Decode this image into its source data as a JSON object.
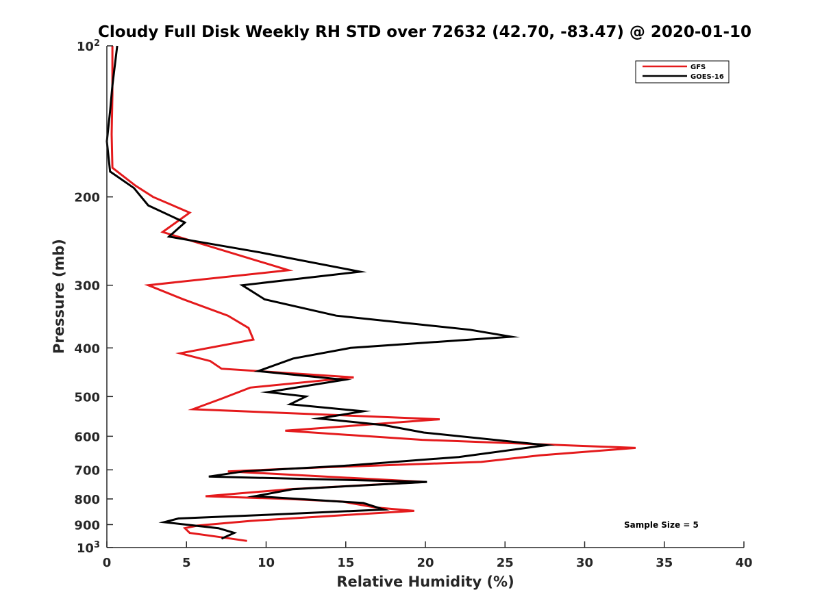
{
  "chart_data": {
    "type": "line",
    "title": "Cloudy Full Disk Weekly RH STD over 72632 (42.70, -83.47) @ 2020-01-10",
    "xlabel": "Relative Humidity (%)",
    "ylabel": "Pressure (mb)",
    "xlim": [
      0,
      40
    ],
    "ylim": [
      100,
      1000
    ],
    "y_scale": "log",
    "y_reversed": true,
    "x_ticks": [
      "0",
      "5",
      "10",
      "15",
      "20",
      "25",
      "30",
      "35",
      "40"
    ],
    "y_ticks": [
      {
        "value": 100,
        "base": "10",
        "exp": "2"
      },
      {
        "value": 200,
        "label": "200"
      },
      {
        "value": 300,
        "label": "300"
      },
      {
        "value": 400,
        "label": "400"
      },
      {
        "value": 500,
        "label": "500"
      },
      {
        "value": 600,
        "label": "600"
      },
      {
        "value": 700,
        "label": "700"
      },
      {
        "value": 800,
        "label": "800"
      },
      {
        "value": 900,
        "label": "900"
      },
      {
        "value": 1000,
        "base": "10",
        "exp": "3"
      }
    ],
    "grid": false,
    "legend_position": "top-right",
    "annotation": "Sample Size = 5",
    "series": [
      {
        "name": "GFS",
        "color": "#e41a1c",
        "points": [
          [
            0.35,
            100
          ],
          [
            0.35,
            125
          ],
          [
            0.3,
            150
          ],
          [
            0.35,
            175
          ],
          [
            1.8,
            190
          ],
          [
            2.9,
            200
          ],
          [
            5.2,
            215
          ],
          [
            3.5,
            235
          ],
          [
            11.4,
            280
          ],
          [
            2.6,
            300
          ],
          [
            4.8,
            320
          ],
          [
            7.6,
            345
          ],
          [
            8.9,
            365
          ],
          [
            9.2,
            385
          ],
          [
            4.6,
            410
          ],
          [
            6.5,
            425
          ],
          [
            7.2,
            440
          ],
          [
            15.5,
            458
          ],
          [
            9.0,
            480
          ],
          [
            7.2,
            505
          ],
          [
            5.4,
            530
          ],
          [
            20.9,
            555
          ],
          [
            11.2,
            585
          ],
          [
            19.8,
            610
          ],
          [
            33.2,
            633
          ],
          [
            27.2,
            655
          ],
          [
            23.5,
            675
          ],
          [
            13.6,
            692
          ],
          [
            7.6,
            705
          ],
          [
            20.0,
            740
          ],
          [
            11.5,
            765
          ],
          [
            6.2,
            790
          ],
          [
            11.4,
            800
          ],
          [
            14.8,
            810
          ],
          [
            16.9,
            832
          ],
          [
            19.3,
            845
          ],
          [
            14.8,
            862
          ],
          [
            9.0,
            885
          ],
          [
            5.7,
            904
          ],
          [
            4.9,
            915
          ],
          [
            5.2,
            935
          ],
          [
            7.3,
            955
          ],
          [
            8.8,
            970
          ]
        ]
      },
      {
        "name": "GOES-16",
        "color": "#000000",
        "points": [
          [
            0.65,
            100
          ],
          [
            0.35,
            120
          ],
          [
            0.2,
            135
          ],
          [
            0.0,
            155
          ],
          [
            0.2,
            178
          ],
          [
            1.7,
            192
          ],
          [
            2.6,
            208
          ],
          [
            4.9,
            225
          ],
          [
            3.9,
            240
          ],
          [
            9.6,
            258
          ],
          [
            15.9,
            282
          ],
          [
            8.5,
            300
          ],
          [
            9.9,
            320
          ],
          [
            14.4,
            345
          ],
          [
            22.8,
            368
          ],
          [
            25.4,
            380
          ],
          [
            15.3,
            400
          ],
          [
            11.7,
            420
          ],
          [
            9.5,
            445
          ],
          [
            14.9,
            463
          ],
          [
            10.1,
            490
          ],
          [
            12.5,
            500
          ],
          [
            11.5,
            518
          ],
          [
            16.1,
            535
          ],
          [
            13.3,
            553
          ],
          [
            17.4,
            570
          ],
          [
            19.9,
            590
          ],
          [
            27.6,
            625
          ],
          [
            22.1,
            660
          ],
          [
            14.9,
            687
          ],
          [
            8.6,
            705
          ],
          [
            6.4,
            722
          ],
          [
            20.1,
            740
          ],
          [
            11.7,
            765
          ],
          [
            9.3,
            790
          ],
          [
            16.1,
            815
          ],
          [
            17.4,
            840
          ],
          [
            10.2,
            860
          ],
          [
            4.5,
            875
          ],
          [
            3.6,
            890
          ],
          [
            7.0,
            915
          ],
          [
            8.0,
            935
          ],
          [
            7.2,
            960
          ]
        ]
      }
    ]
  }
}
